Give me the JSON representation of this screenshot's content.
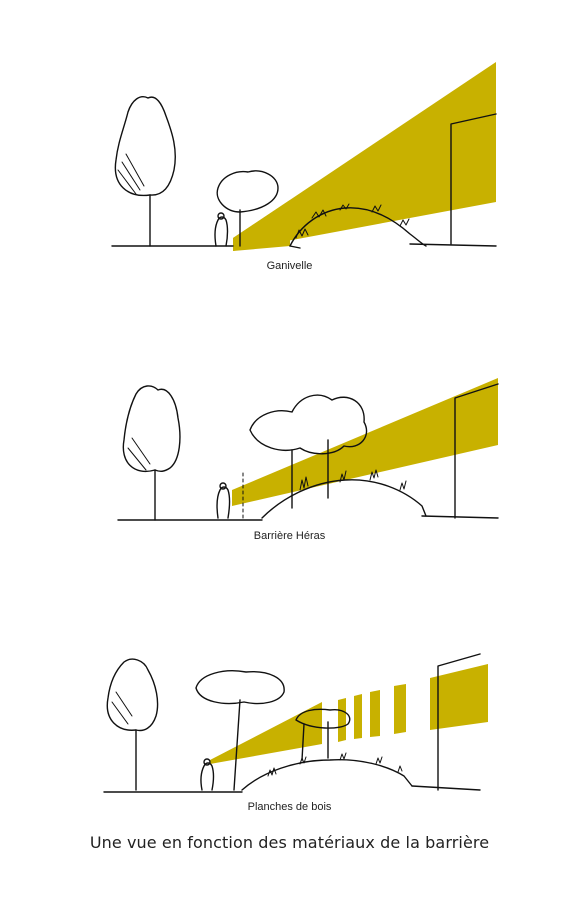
{
  "colors": {
    "view_cone": "#c8b100",
    "ink": "#111111",
    "background": "#ffffff"
  },
  "scenes": [
    {
      "label": "Ganivelle",
      "barrier": "ganivelle"
    },
    {
      "label": "Barrière Héras",
      "barrier": "barriere-heras"
    },
    {
      "label": "Planches de bois",
      "barrier": "planches-de-bois"
    }
  ],
  "caption": "Une vue en fonction des matériaux de la barrière"
}
